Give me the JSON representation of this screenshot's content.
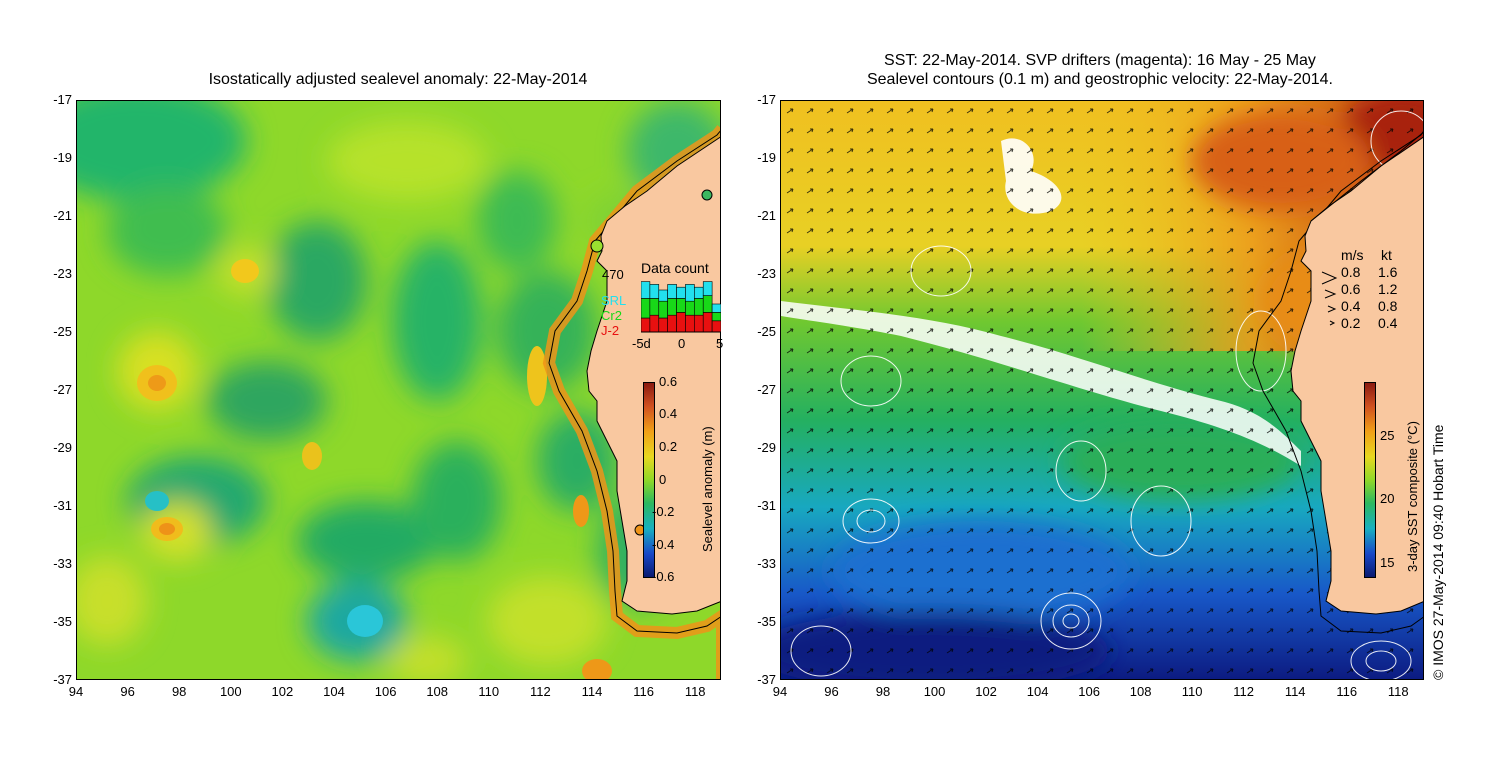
{
  "left_panel": {
    "title": "Isostatically adjusted sealevel anomaly: 22-May-2014",
    "colorbar": {
      "label": "Sealevel anomaly (m)",
      "ticks": [
        "0.6",
        "0.4",
        "0.2",
        "0",
        "-0.2",
        "-0.4",
        "-0.6"
      ]
    },
    "data_count": {
      "title": "Data count",
      "total": "470",
      "legend": [
        {
          "name": "SRL",
          "color": "#22e0ee"
        },
        {
          "name": "Cr2",
          "color": "#18d818"
        },
        {
          "name": "J-2",
          "color": "#e81010"
        }
      ],
      "x_ticks": [
        "-5d",
        "0",
        "5"
      ],
      "bars": [
        {
          "srl": 0.3,
          "cr2": 0.35,
          "j2": 0.25
        },
        {
          "srl": 0.25,
          "cr2": 0.3,
          "j2": 0.3
        },
        {
          "srl": 0.2,
          "cr2": 0.3,
          "j2": 0.25
        },
        {
          "srl": 0.25,
          "cr2": 0.3,
          "j2": 0.3
        },
        {
          "srl": 0.2,
          "cr2": 0.25,
          "j2": 0.35
        },
        {
          "srl": 0.3,
          "cr2": 0.25,
          "j2": 0.3
        },
        {
          "srl": 0.2,
          "cr2": 0.3,
          "j2": 0.3
        },
        {
          "srl": 0.25,
          "cr2": 0.3,
          "j2": 0.35
        },
        {
          "srl": 0.15,
          "cr2": 0.15,
          "j2": 0.2
        }
      ]
    }
  },
  "right_panel": {
    "title_line1": "SST: 22-May-2014. SVP drifters (magenta): 16 May - 25 May",
    "title_line2": "Sealevel contours (0.1 m) and geostrophic velocity: 22-May-2014.",
    "colorbar": {
      "label": "3-day SST composite (°C)",
      "ticks": [
        "25",
        "20",
        "15"
      ]
    },
    "velocity_legend": {
      "header_ms": "m/s",
      "header_kt": "kt",
      "rows": [
        {
          "ms": "0.8",
          "kt": "1.6"
        },
        {
          "ms": "0.6",
          "kt": "1.2"
        },
        {
          "ms": "0.4",
          "kt": "0.8"
        },
        {
          "ms": "0.2",
          "kt": "0.4"
        }
      ]
    }
  },
  "axes": {
    "x_ticks": [
      "94",
      "96",
      "98",
      "100",
      "102",
      "104",
      "106",
      "108",
      "110",
      "112",
      "114",
      "116",
      "118"
    ],
    "y_ticks": [
      "-17",
      "-19",
      "-21",
      "-23",
      "-25",
      "-27",
      "-29",
      "-31",
      "-33",
      "-35",
      "-37"
    ]
  },
  "credit": "© IMOS 27-May-2014 09:40 Hobart Time"
}
